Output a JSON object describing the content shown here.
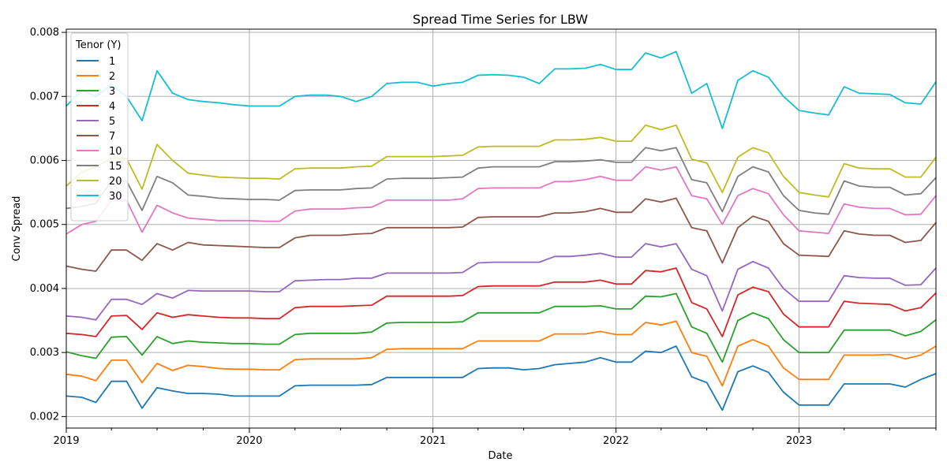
{
  "chart_data": {
    "type": "line",
    "title": "Spread Time Series for LBW",
    "xlabel": "Date",
    "ylabel": "Conv Spread",
    "xlim": [
      "2019-01-01",
      "2023-10-01"
    ],
    "ylim": [
      0.00182,
      0.00805
    ],
    "x_ticks": [
      "2019",
      "2020",
      "2021",
      "2022",
      "2023"
    ],
    "y_ticks": [
      "0.002",
      "0.003",
      "0.004",
      "0.005",
      "0.006",
      "0.007",
      "0.008"
    ],
    "grid": true,
    "legend": {
      "title": "Tenor (Y)",
      "placement": "top-left"
    },
    "x": [
      "2019-01-01",
      "2019-02-01",
      "2019-03-01",
      "2019-04-01",
      "2019-05-01",
      "2019-06-01",
      "2019-07-01",
      "2019-08-01",
      "2019-09-01",
      "2019-10-01",
      "2019-11-01",
      "2019-12-01",
      "2020-01-01",
      "2020-02-01",
      "2020-03-01",
      "2020-04-01",
      "2020-05-01",
      "2020-06-01",
      "2020-07-01",
      "2020-08-01",
      "2020-09-01",
      "2020-10-01",
      "2020-11-01",
      "2020-12-01",
      "2021-01-01",
      "2021-02-01",
      "2021-03-01",
      "2021-04-01",
      "2021-05-01",
      "2021-06-01",
      "2021-07-01",
      "2021-08-01",
      "2021-09-01",
      "2021-10-01",
      "2021-11-01",
      "2021-12-01",
      "2022-01-01",
      "2022-02-01",
      "2022-03-01",
      "2022-04-01",
      "2022-05-01",
      "2022-06-01",
      "2022-07-01",
      "2022-08-01",
      "2022-09-01",
      "2022-10-01",
      "2022-11-01",
      "2022-12-01",
      "2023-01-01",
      "2023-02-01",
      "2023-03-01",
      "2023-04-01",
      "2023-05-01",
      "2023-06-01",
      "2023-07-01",
      "2023-08-01",
      "2023-09-01",
      "2023-10-01"
    ],
    "series": [
      {
        "name": "1",
        "color": "#1f77b4",
        "values": [
          0.00232,
          0.0023,
          0.00222,
          0.00255,
          0.00255,
          0.00213,
          0.00245,
          0.0024,
          0.00236,
          0.00236,
          0.00235,
          0.00232,
          0.00232,
          0.00232,
          0.00232,
          0.00248,
          0.00249,
          0.00249,
          0.00249,
          0.00249,
          0.0025,
          0.00261,
          0.00261,
          0.00261,
          0.00261,
          0.00261,
          0.00261,
          0.00275,
          0.00276,
          0.00276,
          0.00273,
          0.00275,
          0.00281,
          0.00283,
          0.00285,
          0.00292,
          0.00285,
          0.00285,
          0.00302,
          0.003,
          0.0031,
          0.00262,
          0.00253,
          0.0021,
          0.0027,
          0.00279,
          0.00269,
          0.00238,
          0.00218,
          0.00218,
          0.00218,
          0.00251,
          0.00251,
          0.00251,
          0.00251,
          0.00246,
          0.00258,
          0.00267
        ]
      },
      {
        "name": "2",
        "color": "#ff7f0e",
        "values": [
          0.00266,
          0.00263,
          0.00256,
          0.00288,
          0.00288,
          0.00253,
          0.00283,
          0.00272,
          0.0028,
          0.00278,
          0.00275,
          0.00274,
          0.00274,
          0.00273,
          0.00273,
          0.00289,
          0.0029,
          0.0029,
          0.0029,
          0.0029,
          0.00292,
          0.00305,
          0.00306,
          0.00306,
          0.00306,
          0.00306,
          0.00306,
          0.00318,
          0.00318,
          0.00318,
          0.00318,
          0.00318,
          0.00329,
          0.00329,
          0.00329,
          0.00333,
          0.00328,
          0.00328,
          0.00347,
          0.00343,
          0.00349,
          0.003,
          0.00294,
          0.00248,
          0.0031,
          0.0032,
          0.0031,
          0.00276,
          0.00258,
          0.00258,
          0.00258,
          0.00296,
          0.00296,
          0.00296,
          0.00297,
          0.0029,
          0.00296,
          0.0031
        ]
      },
      {
        "name": "3",
        "color": "#2ca02c",
        "values": [
          0.00301,
          0.00295,
          0.00291,
          0.00324,
          0.00325,
          0.00296,
          0.00325,
          0.00314,
          0.00318,
          0.00316,
          0.00315,
          0.00314,
          0.00314,
          0.00313,
          0.00313,
          0.00328,
          0.0033,
          0.0033,
          0.0033,
          0.0033,
          0.00332,
          0.00346,
          0.00347,
          0.00347,
          0.00347,
          0.00347,
          0.00348,
          0.00362,
          0.00362,
          0.00362,
          0.00362,
          0.00362,
          0.00372,
          0.00372,
          0.00372,
          0.00373,
          0.00368,
          0.00368,
          0.00388,
          0.00387,
          0.00392,
          0.0034,
          0.0033,
          0.00285,
          0.0035,
          0.00362,
          0.00353,
          0.0032,
          0.003,
          0.003,
          0.003,
          0.00335,
          0.00335,
          0.00335,
          0.00335,
          0.00326,
          0.00333,
          0.00351
        ]
      },
      {
        "name": "4",
        "color": "#d62728",
        "values": [
          0.0033,
          0.00328,
          0.00325,
          0.00357,
          0.00358,
          0.00336,
          0.00362,
          0.00355,
          0.00359,
          0.00357,
          0.00355,
          0.00354,
          0.00354,
          0.00353,
          0.00353,
          0.0037,
          0.00372,
          0.00372,
          0.00372,
          0.00373,
          0.00374,
          0.00388,
          0.00388,
          0.00388,
          0.00388,
          0.00388,
          0.00389,
          0.00403,
          0.00404,
          0.00404,
          0.00404,
          0.00404,
          0.0041,
          0.0041,
          0.0041,
          0.00413,
          0.00407,
          0.00407,
          0.00428,
          0.00426,
          0.00432,
          0.00378,
          0.00368,
          0.00325,
          0.0039,
          0.00402,
          0.00395,
          0.0036,
          0.0034,
          0.0034,
          0.0034,
          0.0038,
          0.00377,
          0.00376,
          0.00375,
          0.00365,
          0.0037,
          0.00393
        ]
      },
      {
        "name": "5",
        "color": "#9467bd",
        "values": [
          0.00357,
          0.00355,
          0.00351,
          0.00383,
          0.00383,
          0.00375,
          0.00392,
          0.00385,
          0.00397,
          0.00396,
          0.00396,
          0.00396,
          0.00396,
          0.00395,
          0.00395,
          0.00412,
          0.00413,
          0.00414,
          0.00414,
          0.00416,
          0.00416,
          0.00424,
          0.00424,
          0.00424,
          0.00424,
          0.00424,
          0.00425,
          0.0044,
          0.00441,
          0.00441,
          0.00441,
          0.00441,
          0.0045,
          0.0045,
          0.00452,
          0.00455,
          0.00449,
          0.00449,
          0.0047,
          0.00465,
          0.0047,
          0.0043,
          0.0042,
          0.00365,
          0.0043,
          0.00442,
          0.00432,
          0.004,
          0.0038,
          0.0038,
          0.0038,
          0.0042,
          0.00417,
          0.00416,
          0.00416,
          0.00405,
          0.00406,
          0.00432
        ]
      },
      {
        "name": "7",
        "color": "#8c564b",
        "values": [
          0.00435,
          0.0043,
          0.00427,
          0.0046,
          0.0046,
          0.00444,
          0.0047,
          0.0046,
          0.00472,
          0.00468,
          0.00467,
          0.00466,
          0.00465,
          0.00464,
          0.00464,
          0.00479,
          0.00483,
          0.00483,
          0.00483,
          0.00485,
          0.00486,
          0.00495,
          0.00495,
          0.00495,
          0.00495,
          0.00495,
          0.00496,
          0.00511,
          0.00512,
          0.00512,
          0.00512,
          0.00512,
          0.00518,
          0.00518,
          0.0052,
          0.00525,
          0.00519,
          0.00519,
          0.0054,
          0.00535,
          0.00541,
          0.00495,
          0.0049,
          0.0044,
          0.00495,
          0.00513,
          0.00505,
          0.0047,
          0.00452,
          0.00451,
          0.0045,
          0.0049,
          0.00485,
          0.00483,
          0.00483,
          0.00472,
          0.00475,
          0.00503
        ]
      },
      {
        "name": "10",
        "color": "#e377c2",
        "values": [
          0.00485,
          0.005,
          0.00505,
          0.00538,
          0.00538,
          0.00488,
          0.0053,
          0.00518,
          0.0051,
          0.00508,
          0.00506,
          0.00506,
          0.00506,
          0.00505,
          0.00505,
          0.00521,
          0.00524,
          0.00524,
          0.00524,
          0.00526,
          0.00527,
          0.00538,
          0.00538,
          0.00538,
          0.00538,
          0.00538,
          0.0054,
          0.00556,
          0.00557,
          0.00557,
          0.00557,
          0.00557,
          0.00567,
          0.00567,
          0.0057,
          0.00575,
          0.00569,
          0.00569,
          0.0059,
          0.00585,
          0.0059,
          0.00545,
          0.0054,
          0.005,
          0.00545,
          0.00556,
          0.00548,
          0.00515,
          0.0049,
          0.00488,
          0.00486,
          0.00532,
          0.00527,
          0.00525,
          0.00525,
          0.00515,
          0.00516,
          0.00545
        ]
      },
      {
        "name": "15",
        "color": "#7f7f7f",
        "values": [
          0.00525,
          0.00528,
          0.00533,
          0.00568,
          0.00568,
          0.00522,
          0.00575,
          0.00565,
          0.00546,
          0.00544,
          0.00541,
          0.0054,
          0.00539,
          0.00539,
          0.00538,
          0.00553,
          0.00554,
          0.00554,
          0.00554,
          0.00556,
          0.00557,
          0.00571,
          0.00572,
          0.00572,
          0.00572,
          0.00573,
          0.00574,
          0.00588,
          0.0059,
          0.0059,
          0.0059,
          0.0059,
          0.00598,
          0.00598,
          0.00599,
          0.00601,
          0.00597,
          0.00597,
          0.0062,
          0.00615,
          0.0062,
          0.0057,
          0.00565,
          0.0052,
          0.00575,
          0.0059,
          0.00582,
          0.00545,
          0.00522,
          0.00518,
          0.00516,
          0.00568,
          0.0056,
          0.00558,
          0.00558,
          0.00546,
          0.00548,
          0.00573
        ]
      },
      {
        "name": "20",
        "color": "#bcbd22",
        "values": [
          0.0056,
          0.00582,
          0.0059,
          0.00603,
          0.00603,
          0.00555,
          0.00625,
          0.006,
          0.0058,
          0.00577,
          0.00574,
          0.00573,
          0.00572,
          0.00572,
          0.00571,
          0.00587,
          0.00588,
          0.00588,
          0.00588,
          0.0059,
          0.00591,
          0.00606,
          0.00606,
          0.00606,
          0.00606,
          0.00607,
          0.00608,
          0.00621,
          0.00622,
          0.00622,
          0.00622,
          0.00622,
          0.00632,
          0.00632,
          0.00633,
          0.00636,
          0.0063,
          0.0063,
          0.00655,
          0.00648,
          0.00655,
          0.00602,
          0.00596,
          0.0055,
          0.00605,
          0.0062,
          0.00612,
          0.00575,
          0.0055,
          0.00546,
          0.00543,
          0.00595,
          0.00588,
          0.00587,
          0.00587,
          0.00574,
          0.00574,
          0.00605
        ]
      },
      {
        "name": "30",
        "color": "#17becf",
        "values": [
          0.00685,
          0.0071,
          0.007,
          0.00718,
          0.007,
          0.00662,
          0.0074,
          0.00705,
          0.00695,
          0.00692,
          0.0069,
          0.00687,
          0.00685,
          0.00685,
          0.00685,
          0.007,
          0.00702,
          0.00702,
          0.007,
          0.00692,
          0.007,
          0.0072,
          0.00722,
          0.00722,
          0.00716,
          0.0072,
          0.00722,
          0.00733,
          0.00734,
          0.00733,
          0.0073,
          0.0072,
          0.00743,
          0.00743,
          0.00744,
          0.0075,
          0.00742,
          0.00742,
          0.00768,
          0.0076,
          0.0077,
          0.00705,
          0.0072,
          0.0065,
          0.00725,
          0.0074,
          0.0073,
          0.007,
          0.00678,
          0.00674,
          0.00671,
          0.00715,
          0.00705,
          0.00704,
          0.00703,
          0.0069,
          0.00688,
          0.00723
        ]
      }
    ]
  }
}
